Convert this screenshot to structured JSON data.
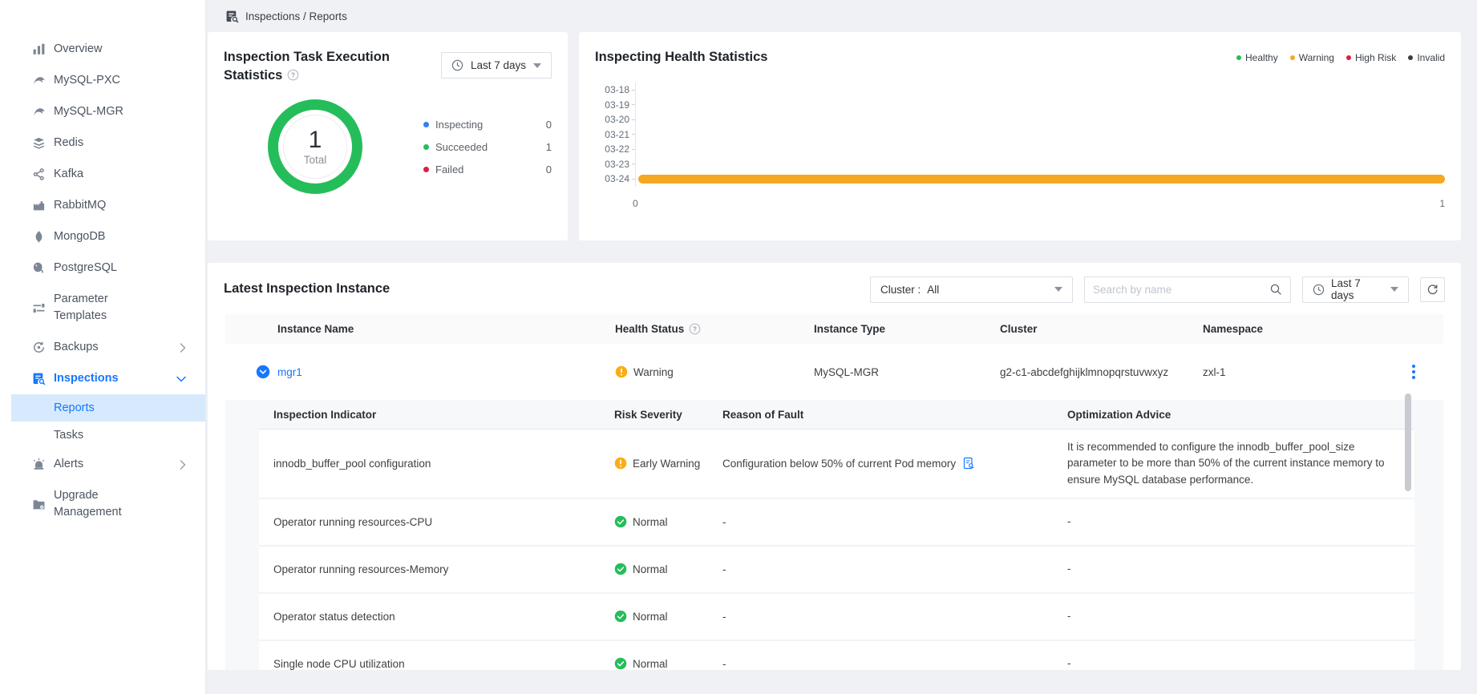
{
  "colors": {
    "accent": "#1677ff",
    "green": "#25bd5a",
    "status_orange": "#faad14",
    "bar_orange": "#f5a821",
    "red": "#e01e3f",
    "invalid": "#3c3c3c",
    "selected_bg": "#d7eafd"
  },
  "breadcrumb": {
    "icon": "inspections-icon",
    "text": "Inspections / Reports"
  },
  "sidebar": {
    "items": [
      {
        "label": "Overview",
        "icon": "overview-icon"
      },
      {
        "label": "MySQL-PXC",
        "icon": "mysql-icon"
      },
      {
        "label": "MySQL-MGR",
        "icon": "mysql-icon"
      },
      {
        "label": "Redis",
        "icon": "redis-icon"
      },
      {
        "label": "Kafka",
        "icon": "kafka-icon"
      },
      {
        "label": "RabbitMQ",
        "icon": "rabbitmq-icon"
      },
      {
        "label": "MongoDB",
        "icon": "mongodb-icon"
      },
      {
        "label": "PostgreSQL",
        "icon": "postgresql-icon"
      },
      {
        "label": "Parameter Templates",
        "icon": "parameter-templates-icon"
      },
      {
        "label": "Backups",
        "icon": "backups-icon",
        "chevron": "right"
      },
      {
        "label": "Inspections",
        "icon": "inspections-icon",
        "chevron": "down",
        "active": true
      },
      {
        "label": "Reports",
        "sub": true,
        "selected": true
      },
      {
        "label": "Tasks",
        "sub": true
      },
      {
        "label": "Alerts",
        "icon": "alerts-icon",
        "chevron": "right"
      },
      {
        "label": "Upgrade Management",
        "icon": "upgrade-icon"
      }
    ]
  },
  "task_stats_card": {
    "title": "Inspection Task Execution Statistics",
    "range_label": "Last 7 days",
    "donut": {
      "total_value": "1",
      "total_label": "Total"
    },
    "legend": [
      {
        "label": "Inspecting",
        "value": "0",
        "color": "#2f7ff7"
      },
      {
        "label": "Succeeded",
        "value": "1",
        "color": "#25bd5a"
      },
      {
        "label": "Failed",
        "value": "0",
        "color": "#e01e3f"
      }
    ]
  },
  "health_stats_card": {
    "title": "Inspecting Health Statistics",
    "legend": [
      {
        "label": "Healthy",
        "color": "#25bd5a"
      },
      {
        "label": "Warning",
        "color": "#f5a821"
      },
      {
        "label": "High Risk",
        "color": "#e01e3f"
      },
      {
        "label": "Invalid",
        "color": "#3c3c3c"
      }
    ],
    "y_labels": [
      "03-18",
      "03-19",
      "03-20",
      "03-21",
      "03-22",
      "03-23",
      "03-24"
    ],
    "x_labels": [
      "0",
      "1"
    ],
    "bars": [
      {
        "row": "03-24",
        "value": 1,
        "series": "Warning",
        "color": "#f5a821"
      }
    ]
  },
  "latest_section": {
    "title": "Latest Inspection Instance",
    "cluster_filter": {
      "label": "Cluster :",
      "value": "All"
    },
    "search_placeholder": "Search by name",
    "range_label": "Last 7 days",
    "table": {
      "columns": [
        {
          "label": "Instance Name"
        },
        {
          "label": "Health Status",
          "help": true
        },
        {
          "label": "Instance Type"
        },
        {
          "label": "Cluster"
        },
        {
          "label": "Namespace"
        }
      ],
      "row": {
        "name": "mgr1",
        "status": "Warning",
        "status_level": "warning",
        "type": "MySQL-MGR",
        "cluster": "g2-c1-abcdefghijklmnopqrstuvwxyz",
        "namespace": "zxl-1",
        "expanded": true
      }
    },
    "detail_table": {
      "columns": [
        "Inspection Indicator",
        "Risk Severity",
        "Reason of Fault",
        "Optimization Advice"
      ],
      "rows": [
        {
          "indicator": "innodb_buffer_pool configuration",
          "severity": "Early Warning",
          "severity_level": "warning",
          "reason": "Configuration below 50% of current Pod memory",
          "has_report_icon": true,
          "advice": "It is recommended to configure the innodb_buffer_pool_size parameter to be more than 50% of the current instance memory to ensure MySQL database performance."
        },
        {
          "indicator": "Operator running resources-CPU",
          "severity": "Normal",
          "severity_level": "normal",
          "reason": "-",
          "advice": "-"
        },
        {
          "indicator": "Operator running resources-Memory",
          "severity": "Normal",
          "severity_level": "normal",
          "reason": "-",
          "advice": "-"
        },
        {
          "indicator": "Operator status detection",
          "severity": "Normal",
          "severity_level": "normal",
          "reason": "-",
          "advice": "-"
        },
        {
          "indicator": "Single node CPU utilization",
          "severity": "Normal",
          "severity_level": "normal",
          "reason": "-",
          "advice": "-"
        }
      ]
    }
  },
  "chart_data": [
    {
      "type": "pie",
      "title": "Inspection Task Execution Statistics",
      "labels": [
        "Inspecting",
        "Succeeded",
        "Failed"
      ],
      "values": [
        0,
        1,
        0
      ],
      "colors": [
        "#2f7ff7",
        "#25bd5a",
        "#e01e3f"
      ],
      "center_value": 1,
      "center_label": "Total",
      "legend_position": "right",
      "time_range": "Last 7 days"
    },
    {
      "type": "bar",
      "orientation": "horizontal",
      "title": "Inspecting Health Statistics",
      "categories": [
        "03-18",
        "03-19",
        "03-20",
        "03-21",
        "03-22",
        "03-23",
        "03-24"
      ],
      "series": [
        {
          "name": "Healthy",
          "color": "#25bd5a",
          "values": [
            0,
            0,
            0,
            0,
            0,
            0,
            0
          ]
        },
        {
          "name": "Warning",
          "color": "#f5a821",
          "values": [
            0,
            0,
            0,
            0,
            0,
            0,
            1
          ]
        },
        {
          "name": "High Risk",
          "color": "#e01e3f",
          "values": [
            0,
            0,
            0,
            0,
            0,
            0,
            0
          ]
        },
        {
          "name": "Invalid",
          "color": "#3c3c3c",
          "values": [
            0,
            0,
            0,
            0,
            0,
            0,
            0
          ]
        }
      ],
      "xlabel": "",
      "ylabel": "",
      "xlim": [
        0,
        1
      ],
      "x_ticks": [
        0,
        1
      ],
      "grid": false,
      "legend_position": "top-right"
    }
  ]
}
